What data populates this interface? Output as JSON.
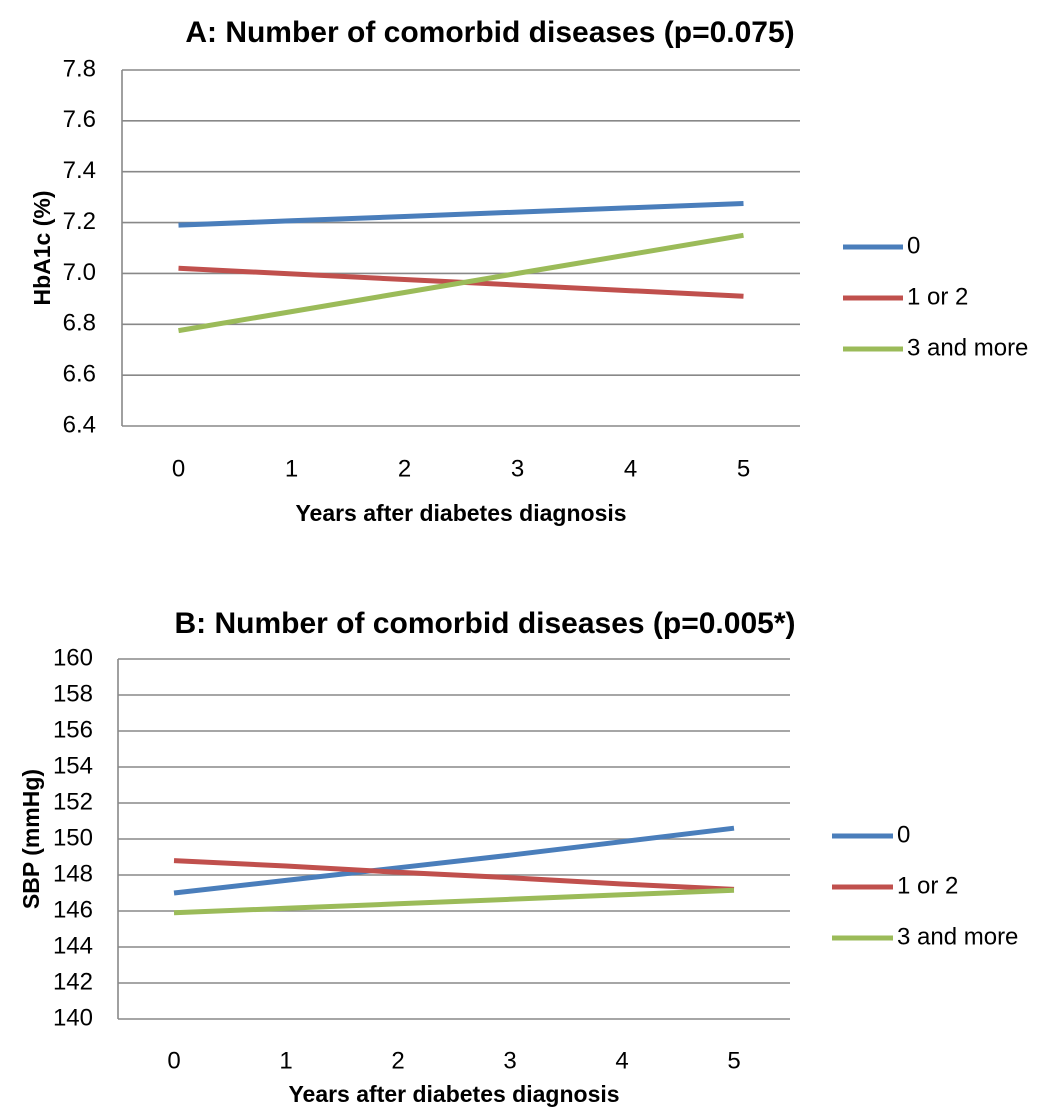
{
  "chart_data": [
    {
      "type": "line",
      "title": "A: Number of comorbid diseases (p=0.075)",
      "xlabel": "Years after diabetes diagnosis",
      "ylabel": "HbA1c (%)",
      "x": [
        0,
        1,
        2,
        3,
        4,
        5
      ],
      "ylim": [
        6.4,
        7.8
      ],
      "yticks": [
        "6.4",
        "6.6",
        "6.8",
        "7.0",
        "7.2",
        "7.4",
        "7.6",
        "7.8"
      ],
      "grid": true,
      "legend_position": "right",
      "series": [
        {
          "name": "0",
          "color": "#4a7ebb",
          "values": [
            7.19,
            7.207,
            7.224,
            7.241,
            7.258,
            7.275
          ]
        },
        {
          "name": "1 or 2",
          "color": "#c0504d",
          "values": [
            7.02,
            6.998,
            6.976,
            6.954,
            6.932,
            6.91
          ]
        },
        {
          "name": "3 and more",
          "color": "#9bbb59",
          "values": [
            6.775,
            6.85,
            6.925,
            7.0,
            7.075,
            7.15
          ]
        }
      ]
    },
    {
      "type": "line",
      "title": "B: Number of comorbid diseases (p=0.005*)",
      "xlabel": "Years after diabetes diagnosis",
      "ylabel": "SBP (mmHg)",
      "x": [
        0,
        1,
        2,
        3,
        4,
        5
      ],
      "ylim": [
        140,
        160
      ],
      "yticks": [
        "140",
        "142",
        "144",
        "146",
        "148",
        "150",
        "152",
        "154",
        "156",
        "158",
        "160"
      ],
      "grid": true,
      "legend_position": "right",
      "series": [
        {
          "name": "0",
          "color": "#4a7ebb",
          "values": [
            147.0,
            147.7,
            148.4,
            149.1,
            149.85,
            150.6
          ]
        },
        {
          "name": "1 or 2",
          "color": "#c0504d",
          "values": [
            148.8,
            148.5,
            148.15,
            147.85,
            147.5,
            147.2
          ]
        },
        {
          "name": "3 and more",
          "color": "#9bbb59",
          "values": [
            145.9,
            146.15,
            146.4,
            146.65,
            146.9,
            147.15
          ]
        }
      ]
    }
  ]
}
